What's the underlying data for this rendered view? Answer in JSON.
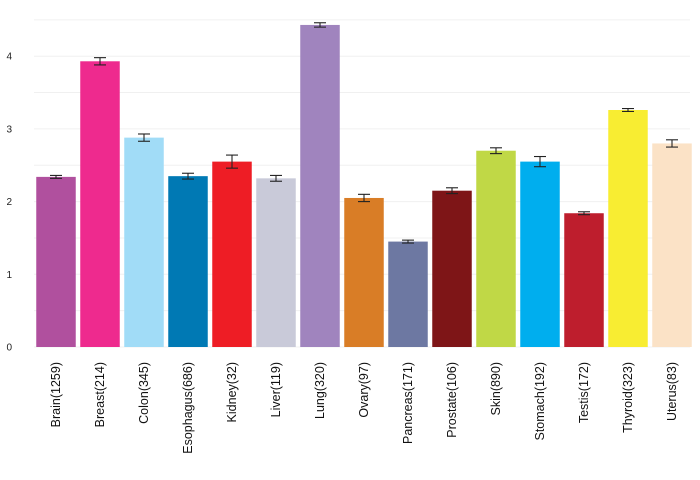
{
  "chart_data": {
    "type": "bar",
    "title": "",
    "xlabel": "",
    "ylabel": "",
    "ylim": [
      0,
      4.7
    ],
    "yticks": [
      0,
      1,
      2,
      3,
      4
    ],
    "grid": "horizontal",
    "error_bars": true,
    "categories": [
      "Brain(1259)",
      "Breast(214)",
      "Colon(345)",
      "Esophagus(686)",
      "Kidney(32)",
      "Liver(119)",
      "Lung(320)",
      "Ovary(97)",
      "Pancreas(171)",
      "Prostate(106)",
      "Skin(890)",
      "Stomach(192)",
      "Testis(172)",
      "Thyroid(323)",
      "Uterus(83)"
    ],
    "values": [
      2.34,
      3.93,
      2.88,
      2.35,
      2.55,
      2.32,
      4.43,
      2.05,
      1.45,
      2.15,
      2.7,
      2.55,
      1.84,
      3.26,
      2.8
    ],
    "errors": [
      0.02,
      0.05,
      0.05,
      0.04,
      0.09,
      0.04,
      0.03,
      0.05,
      0.02,
      0.04,
      0.04,
      0.07,
      0.02,
      0.02,
      0.05
    ],
    "colors": [
      "#b0509e",
      "#ee2a8e",
      "#a1dcf7",
      "#0079b4",
      "#ee1d25",
      "#c9cad9",
      "#a084be",
      "#d97d26",
      "#6d78a2",
      "#7e1517",
      "#c0d846",
      "#00aeee",
      "#be1e2d",
      "#f8ed32",
      "#fbe2c6"
    ]
  }
}
